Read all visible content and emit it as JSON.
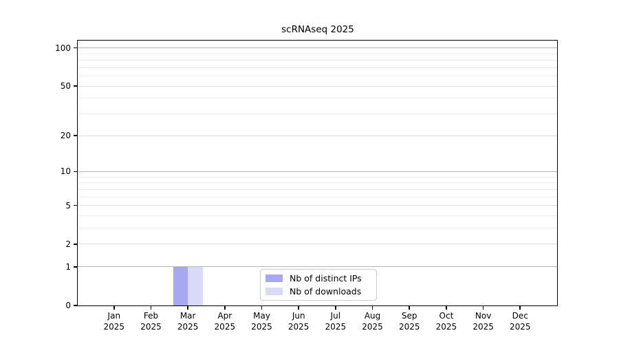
{
  "page": {
    "background": "#ffffff"
  },
  "chart_data": {
    "type": "bar",
    "title": "scRNAseq 2025",
    "categories": [
      "Jan",
      "Feb",
      "Mar",
      "Apr",
      "May",
      "Jun",
      "Jul",
      "Aug",
      "Sep",
      "Oct",
      "Nov",
      "Dec"
    ],
    "category_year": "2025",
    "series": [
      {
        "name": "Nb of distinct IPs",
        "color": "#a8a8f2",
        "values": [
          0,
          0,
          1,
          0,
          0,
          0,
          0,
          0,
          0,
          0,
          0,
          0
        ]
      },
      {
        "name": "Nb of downloads",
        "color": "#d9d9f8",
        "values": [
          0,
          0,
          1,
          0,
          0,
          0,
          0,
          0,
          0,
          0,
          0,
          0
        ]
      }
    ],
    "y_scale": "log10(1+y)",
    "ylim": [
      0,
      115
    ],
    "y_ticks": [
      0,
      1,
      2,
      5,
      10,
      20,
      50,
      100
    ],
    "y_gridlines_dark": [
      1,
      10,
      100
    ],
    "y_gridlines_light": [
      2,
      5,
      20,
      50
    ],
    "y_gridlines_minor": [
      3,
      4,
      6,
      7,
      8,
      9,
      30,
      40,
      60,
      70,
      80,
      90
    ],
    "colors": {
      "grid_dark": "#b4b4b4",
      "grid_light": "#dedede",
      "grid_minor": "#ececec",
      "axis": "#000000",
      "legend_border": "#cccccc"
    },
    "legend": {
      "position": "lower center"
    },
    "grid": true
  }
}
